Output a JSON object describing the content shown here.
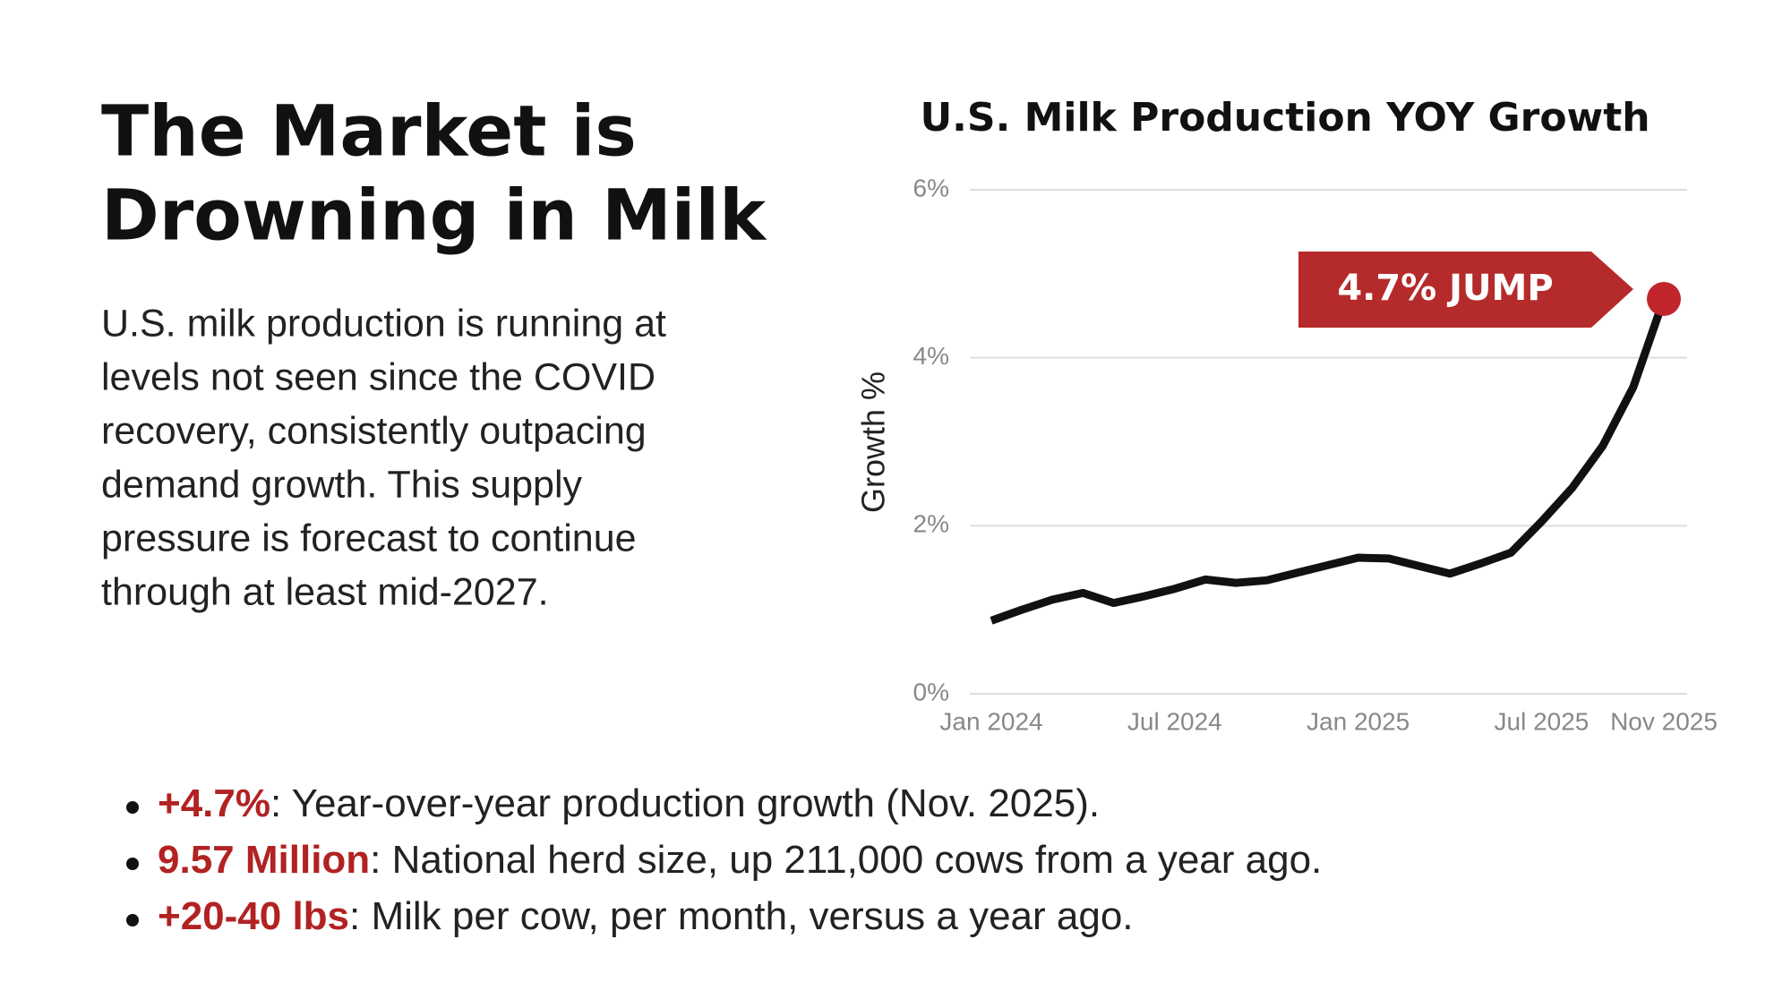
{
  "title_lines": [
    "The Market is",
    "Drowning in Milk"
  ],
  "body_lines": [
    "U.S. milk production is running at",
    "levels not seen since the COVID",
    "recovery, consistently outpacing",
    "demand growth. This supply",
    "pressure is forecast to continue",
    "through at least mid-2027."
  ],
  "bullets": [
    {
      "highlight": "+4.7%",
      "text": ": Year-over-year production growth (Nov. 2025)."
    },
    {
      "highlight": "9.57 Million",
      "text": ": National herd size, up 211,000 cows from a year ago."
    },
    {
      "highlight": "+20-40 lbs",
      "text": ": Milk per cow, per month, versus a year ago."
    }
  ],
  "chart_data": {
    "type": "line",
    "title": "U.S. Milk Production YOY Growth",
    "ylabel": "Growth %",
    "categories": [
      "Jan 2024",
      null,
      null,
      null,
      null,
      null,
      "Jul 2024",
      null,
      null,
      null,
      null,
      null,
      "Jan 2025",
      null,
      null,
      null,
      null,
      null,
      "Jul 2025",
      null,
      null,
      null,
      "Nov 2025"
    ],
    "series": [
      {
        "color": "#111111",
        "values": [
          0.87,
          1.0,
          1.12,
          1.2,
          1.08,
          1.16,
          1.25,
          1.36,
          1.32,
          1.35,
          1.44,
          1.53,
          1.62,
          1.61,
          1.52,
          1.43,
          1.55,
          1.68,
          2.05,
          2.45,
          2.95,
          3.65,
          4.7
        ]
      }
    ],
    "marker_color": "#c0262c",
    "annotation": "4.7% JUMP",
    "ylim": [
      0,
      6
    ],
    "yticks": [
      {
        "value": 0,
        "label": "0%"
      },
      {
        "value": 2,
        "label": "2%"
      },
      {
        "value": 4,
        "label": "4%"
      },
      {
        "value": 6,
        "label": "6%"
      }
    ],
    "grid": true
  }
}
